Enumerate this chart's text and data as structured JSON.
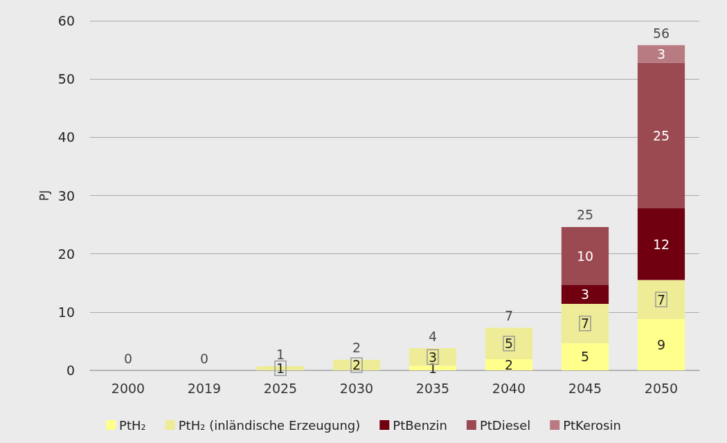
{
  "chart_data": {
    "type": "bar",
    "stacked": true,
    "ylabel": "PJ",
    "categories": [
      "2000",
      "2019",
      "2025",
      "2030",
      "2035",
      "2040",
      "2045",
      "2050"
    ],
    "series": [
      {
        "name": "PtH₂",
        "color": "#ffff8c",
        "values": [
          0,
          0,
          0,
          0,
          0.8,
          1.9,
          4.7,
          8.8
        ],
        "value_labels": [
          null,
          null,
          null,
          null,
          "1",
          "2",
          "5",
          "9"
        ]
      },
      {
        "name": "PtH₂ (inländische Erzeugung)",
        "color": "#eeec96",
        "values": [
          0,
          0,
          0.7,
          1.8,
          3.0,
          5.4,
          6.7,
          6.7
        ],
        "value_labels": [
          null,
          null,
          "1",
          "2",
          "3",
          "5",
          "7",
          "7"
        ]
      },
      {
        "name": "PtBenzin",
        "color": "#70000f",
        "values": [
          0,
          0,
          0,
          0,
          0,
          0,
          3.3,
          12.3
        ],
        "value_labels": [
          null,
          null,
          null,
          null,
          null,
          null,
          "3",
          "12"
        ]
      },
      {
        "name": "PtDiesel",
        "color": "#9b4a52",
        "values": [
          0,
          0,
          0,
          0,
          0,
          0,
          9.9,
          25.0
        ],
        "value_labels": [
          null,
          null,
          null,
          null,
          null,
          null,
          "10",
          "25"
        ]
      },
      {
        "name": "PtKerosin",
        "color": "#b97b82",
        "values": [
          0,
          0,
          0,
          0,
          0,
          0,
          0,
          3.0
        ],
        "value_labels": [
          null,
          null,
          null,
          null,
          null,
          null,
          null,
          "3"
        ]
      }
    ],
    "totals": [
      "0",
      "0",
      "1",
      "2",
      "4",
      "7",
      "25",
      "56"
    ],
    "ylim": [
      0,
      60
    ],
    "yticks": [
      0,
      10,
      20,
      30,
      40,
      50,
      60
    ],
    "grid": "y",
    "legend": "bottom"
  }
}
